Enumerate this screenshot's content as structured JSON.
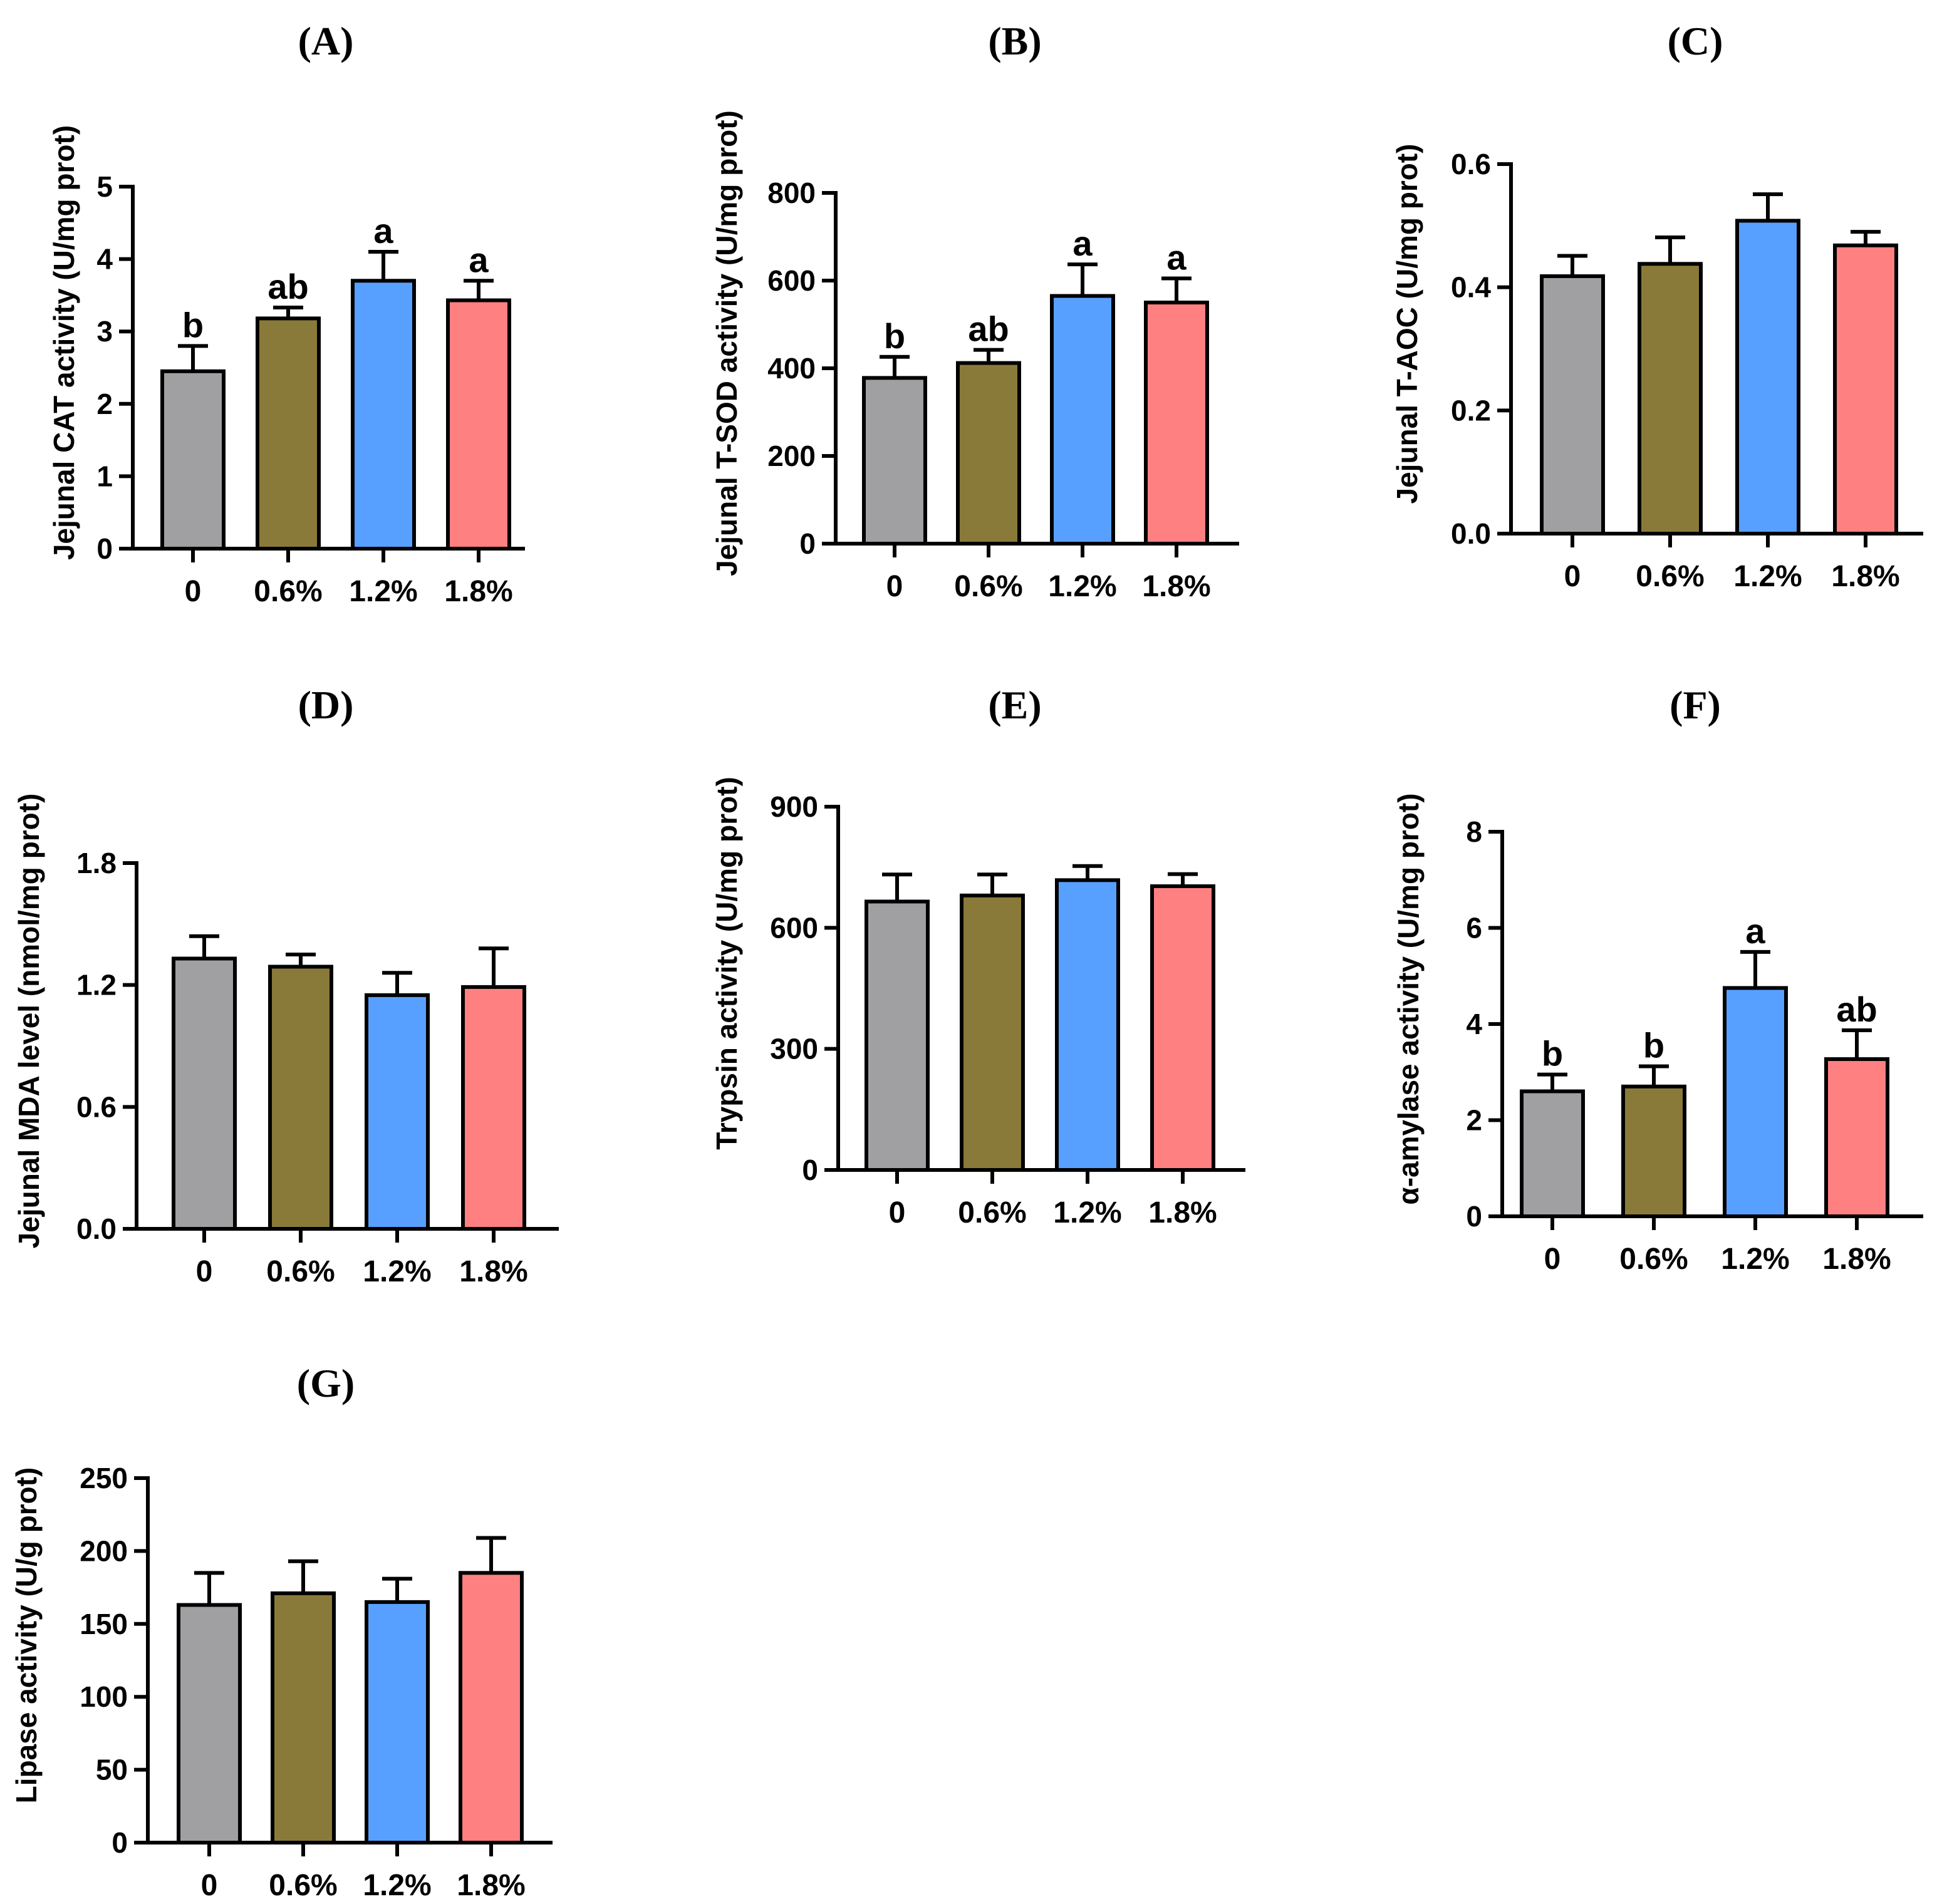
{
  "colors": {
    "bar_0": "#a0a0a2",
    "bar_0_6": "#8a7a3a",
    "bar_1_2": "#58a0ff",
    "bar_1_8": "#ff8080",
    "axis": "#000000"
  },
  "chart_data": [
    {
      "type": "bar",
      "panel": "(A)",
      "ylabel": "Jejunal CAT activity (U/mg prot)",
      "categories": [
        "0",
        "0.6%",
        "1.2%",
        "1.8%"
      ],
      "values": [
        2.45,
        3.18,
        3.7,
        3.43
      ],
      "errors": [
        0.35,
        0.15,
        0.4,
        0.27
      ],
      "significance": [
        "b",
        "ab",
        "a",
        "a"
      ],
      "ylim": [
        0,
        5
      ],
      "yticks": [
        0,
        1,
        2,
        3,
        4,
        5
      ],
      "ytick_labels": [
        "0",
        "1",
        "2",
        "3",
        "4",
        "5"
      ]
    },
    {
      "type": "bar",
      "panel": "(B)",
      "ylabel": "Jejunal T-SOD activity (U/mg prot)",
      "categories": [
        "0",
        "0.6%",
        "1.2%",
        "1.8%"
      ],
      "values": [
        378,
        412,
        565,
        550
      ],
      "errors": [
        48,
        30,
        72,
        55
      ],
      "significance": [
        "b",
        "ab",
        "a",
        "a"
      ],
      "ylim": [
        0,
        800
      ],
      "yticks": [
        0,
        200,
        400,
        600,
        800
      ],
      "ytick_labels": [
        "0",
        "200",
        "400",
        "600",
        "800"
      ]
    },
    {
      "type": "bar",
      "panel": "(C)",
      "ylabel": "Jejunal T-AOC (U/mg prot)",
      "categories": [
        "0",
        "0.6%",
        "1.2%",
        "1.8%"
      ],
      "values": [
        0.418,
        0.438,
        0.508,
        0.468
      ],
      "errors": [
        0.033,
        0.043,
        0.043,
        0.022
      ],
      "significance": [
        "",
        "",
        "",
        ""
      ],
      "ylim": [
        0,
        0.6
      ],
      "yticks": [
        0,
        0.2,
        0.4,
        0.6
      ],
      "ytick_labels": [
        "0.0",
        "0.2",
        "0.4",
        "0.6"
      ]
    },
    {
      "type": "bar",
      "panel": "(D)",
      "ylabel": "Jejunal MDA level (nmol/mg prot)",
      "categories": [
        "0",
        "0.6%",
        "1.2%",
        "1.8%"
      ],
      "values": [
        1.33,
        1.29,
        1.15,
        1.19
      ],
      "errors": [
        0.11,
        0.06,
        0.11,
        0.19
      ],
      "significance": [
        "",
        "",
        "",
        ""
      ],
      "ylim": [
        0,
        1.8
      ],
      "yticks": [
        0,
        0.6,
        1.2,
        1.8
      ],
      "ytick_labels": [
        "0.0",
        "0.6",
        "1.2",
        "1.8"
      ]
    },
    {
      "type": "bar",
      "panel": "(E)",
      "ylabel": "Trypsin activity (U/mg prot)",
      "categories": [
        "0",
        "0.6%",
        "1.2%",
        "1.8%"
      ],
      "values": [
        665,
        680,
        718,
        703
      ],
      "errors": [
        67,
        52,
        35,
        30
      ],
      "significance": [
        "",
        "",
        "",
        ""
      ],
      "ylim": [
        0,
        900
      ],
      "yticks": [
        0,
        300,
        600,
        900
      ],
      "ytick_labels": [
        "0",
        "300",
        "600",
        "900"
      ]
    },
    {
      "type": "bar",
      "panel": "(F)",
      "ylabel": "α-amylase activity (U/mg prot)",
      "categories": [
        "0",
        "0.6%",
        "1.2%",
        "1.8%"
      ],
      "values": [
        2.6,
        2.7,
        4.75,
        3.27
      ],
      "errors": [
        0.35,
        0.42,
        0.75,
        0.6
      ],
      "significance": [
        "b",
        "b",
        "a",
        "ab"
      ],
      "ylim": [
        0,
        8
      ],
      "yticks": [
        0,
        2,
        4,
        6,
        8
      ],
      "ytick_labels": [
        "0",
        "2",
        "4",
        "6",
        "8"
      ]
    },
    {
      "type": "bar",
      "panel": "(G)",
      "ylabel": "Lipase activity (U/g prot)",
      "categories": [
        "0",
        "0.6%",
        "1.2%",
        "1.8%"
      ],
      "values": [
        163,
        171,
        165,
        185
      ],
      "errors": [
        22,
        22,
        16,
        24
      ],
      "significance": [
        "",
        "",
        "",
        ""
      ],
      "ylim": [
        0,
        250
      ],
      "yticks": [
        0,
        50,
        100,
        150,
        200,
        250
      ],
      "ytick_labels": [
        "0",
        "50",
        "100",
        "150",
        "200",
        "250"
      ]
    }
  ]
}
